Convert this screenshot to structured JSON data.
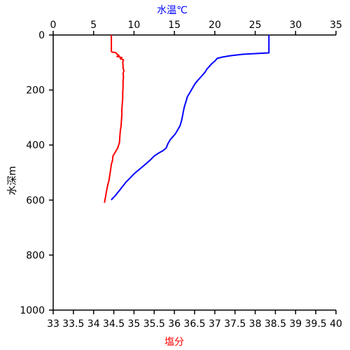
{
  "chart_data": {
    "type": "line",
    "title": "",
    "y_axis": {
      "label": "水深m",
      "range": [
        0,
        1000
      ],
      "inverted": true,
      "ticks": [
        0,
        200,
        400,
        600,
        800,
        1000
      ],
      "tick_labels": [
        "0",
        "200",
        "400",
        "600",
        "800",
        "1000"
      ]
    },
    "x_axis_top": {
      "label": "水温℃",
      "range": [
        0,
        35
      ],
      "ticks": [
        0,
        5,
        10,
        15,
        20,
        25,
        30,
        35
      ],
      "tick_labels": [
        "0",
        "5",
        "10",
        "15",
        "20",
        "25",
        "30",
        "35"
      ],
      "color": "#0000ff"
    },
    "x_axis_bottom": {
      "label": "塩分",
      "range": [
        33,
        40
      ],
      "ticks": [
        33,
        33.5,
        34,
        34.5,
        35,
        35.5,
        36,
        36.5,
        37,
        37.5,
        38,
        38.5,
        39,
        39.5,
        40
      ],
      "tick_labels": [
        "33",
        "33.5",
        "34",
        "34.5",
        "35",
        "35.5",
        "36",
        "36.5",
        "37",
        "37.5",
        "38",
        "38.5",
        "39",
        "39.5",
        "40"
      ],
      "color": "#ff0000"
    },
    "grid": false,
    "legend": "none",
    "series": [
      {
        "axis": "top",
        "color": "#0000ff",
        "points": [
          [
            26.7,
            0
          ],
          [
            26.7,
            65
          ],
          [
            25.5,
            67
          ],
          [
            23.5,
            70
          ],
          [
            22.0,
            75
          ],
          [
            21.0,
            80
          ],
          [
            20.3,
            85
          ],
          [
            20.0,
            95
          ],
          [
            19.6,
            105
          ],
          [
            19.3,
            115
          ],
          [
            19.0,
            125
          ],
          [
            18.8,
            135
          ],
          [
            18.5,
            145
          ],
          [
            18.2,
            155
          ],
          [
            17.9,
            165
          ],
          [
            17.6,
            175
          ],
          [
            17.4,
            185
          ],
          [
            17.2,
            195
          ],
          [
            17.0,
            205
          ],
          [
            16.8,
            215
          ],
          [
            16.6,
            225
          ],
          [
            16.5,
            235
          ],
          [
            16.4,
            245
          ],
          [
            16.3,
            255
          ],
          [
            16.2,
            265
          ],
          [
            16.1,
            280
          ],
          [
            16.0,
            295
          ],
          [
            15.9,
            310
          ],
          [
            15.7,
            330
          ],
          [
            15.4,
            345
          ],
          [
            15.1,
            360
          ],
          [
            14.8,
            370
          ],
          [
            14.5,
            380
          ],
          [
            14.2,
            395
          ],
          [
            14.0,
            410
          ],
          [
            13.6,
            420
          ],
          [
            13.0,
            430
          ],
          [
            12.5,
            440
          ],
          [
            12.0,
            455
          ],
          [
            11.6,
            465
          ],
          [
            11.2,
            475
          ],
          [
            10.8,
            485
          ],
          [
            10.4,
            495
          ],
          [
            10.0,
            505
          ],
          [
            9.5,
            520
          ],
          [
            9.0,
            535
          ],
          [
            8.6,
            550
          ],
          [
            8.2,
            565
          ],
          [
            7.8,
            580
          ],
          [
            7.5,
            590
          ],
          [
            7.3,
            595
          ],
          [
            7.2,
            600
          ]
        ]
      },
      {
        "axis": "bottom",
        "color": "#ff0000",
        "points": [
          [
            34.44,
            0
          ],
          [
            34.44,
            60
          ],
          [
            34.46,
            62
          ],
          [
            34.55,
            64
          ],
          [
            34.58,
            70
          ],
          [
            34.63,
            75
          ],
          [
            34.58,
            78
          ],
          [
            34.7,
            82
          ],
          [
            34.66,
            86
          ],
          [
            34.74,
            90
          ],
          [
            34.72,
            100
          ],
          [
            34.73,
            110
          ],
          [
            34.73,
            120
          ],
          [
            34.75,
            130
          ],
          [
            34.73,
            140
          ],
          [
            34.74,
            150
          ],
          [
            34.73,
            170
          ],
          [
            34.73,
            190
          ],
          [
            34.72,
            210
          ],
          [
            34.72,
            230
          ],
          [
            34.71,
            250
          ],
          [
            34.7,
            270
          ],
          [
            34.7,
            290
          ],
          [
            34.69,
            310
          ],
          [
            34.68,
            330
          ],
          [
            34.66,
            350
          ],
          [
            34.65,
            370
          ],
          [
            34.64,
            390
          ],
          [
            34.6,
            410
          ],
          [
            34.56,
            420
          ],
          [
            34.52,
            430
          ],
          [
            34.48,
            440
          ],
          [
            34.47,
            455
          ],
          [
            34.44,
            470
          ],
          [
            34.42,
            490
          ],
          [
            34.4,
            510
          ],
          [
            34.38,
            530
          ],
          [
            34.35,
            545
          ],
          [
            34.33,
            560
          ],
          [
            34.31,
            575
          ],
          [
            34.3,
            585
          ],
          [
            34.28,
            600
          ],
          [
            34.27,
            610
          ]
        ]
      }
    ]
  }
}
